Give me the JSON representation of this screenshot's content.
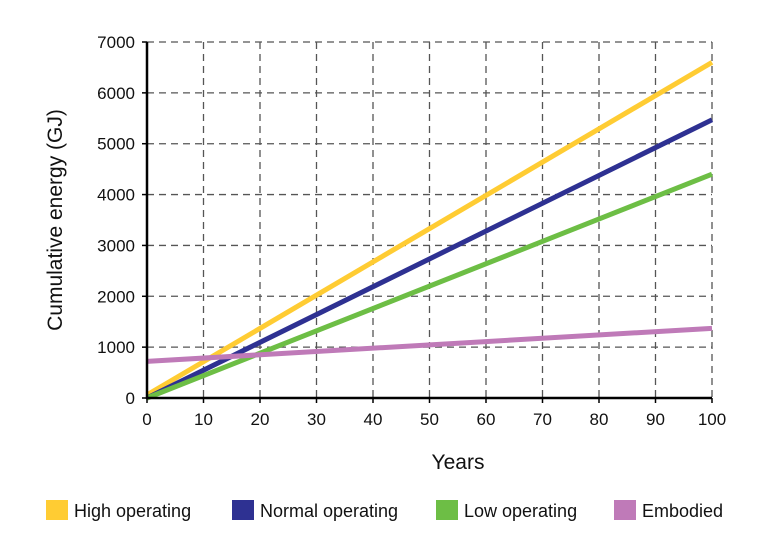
{
  "chart_data": {
    "type": "line",
    "title": "",
    "xlabel": "Years",
    "ylabel": "Cumulative energy (GJ)",
    "xlim": [
      0,
      100
    ],
    "ylim": [
      0,
      7000
    ],
    "xticks": [
      0,
      10,
      20,
      30,
      40,
      50,
      60,
      70,
      80,
      90,
      100
    ],
    "yticks": [
      0,
      1000,
      2000,
      3000,
      4000,
      5000,
      6000,
      7000
    ],
    "grid": true,
    "grid_style": "dashed",
    "legend_placement": "bottom",
    "series": [
      {
        "name": "High operating",
        "color": "#FFCC33",
        "x": [
          0,
          100
        ],
        "y": [
          60,
          6600
        ]
      },
      {
        "name": "Normal operating",
        "color": "#2E3192",
        "x": [
          0,
          100
        ],
        "y": [
          0,
          5470
        ]
      },
      {
        "name": "Low operating",
        "color": "#6DBE45",
        "x": [
          0,
          100
        ],
        "y": [
          0,
          4400
        ]
      },
      {
        "name": "Embodied",
        "color": "#BF7AB8",
        "x": [
          0,
          100
        ],
        "y": [
          720,
          1370
        ]
      }
    ]
  }
}
